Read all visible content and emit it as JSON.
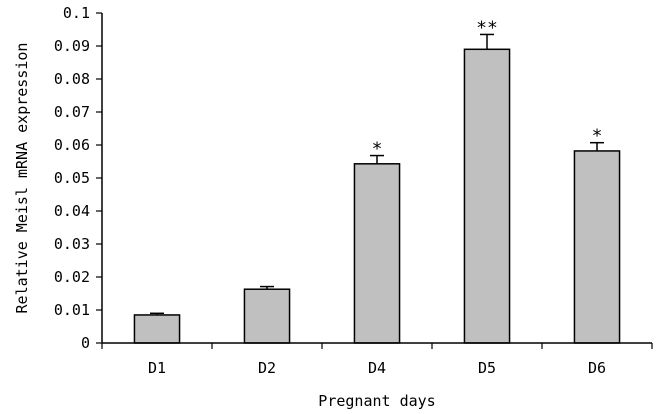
{
  "chart_data": {
    "type": "bar",
    "categories": [
      "D1",
      "D2",
      "D4",
      "D5",
      "D6"
    ],
    "values": [
      0.0085,
      0.0163,
      0.0543,
      0.089,
      0.0582
    ],
    "errors": [
      0.0005,
      0.0008,
      0.0025,
      0.0045,
      0.0025
    ],
    "significance": [
      "",
      "",
      "*",
      "**",
      "*"
    ],
    "xlabel": "Pregnant days",
    "ylabel": "Relative Meisl mRNA expression",
    "ylim": [
      0,
      0.1
    ],
    "yticks": [
      0,
      0.01,
      0.02,
      0.03,
      0.04,
      0.05,
      0.06,
      0.07,
      0.08,
      0.09,
      0.1
    ],
    "ytick_labels": [
      "0",
      "0.01",
      "0.02",
      "0.03",
      "0.04",
      "0.05",
      "0.06",
      "0.07",
      "0.08",
      "0.09",
      "0.1"
    ],
    "bar_color": "#c0c0c0",
    "edge_color": "#000000",
    "grid": false,
    "legend": "none"
  }
}
